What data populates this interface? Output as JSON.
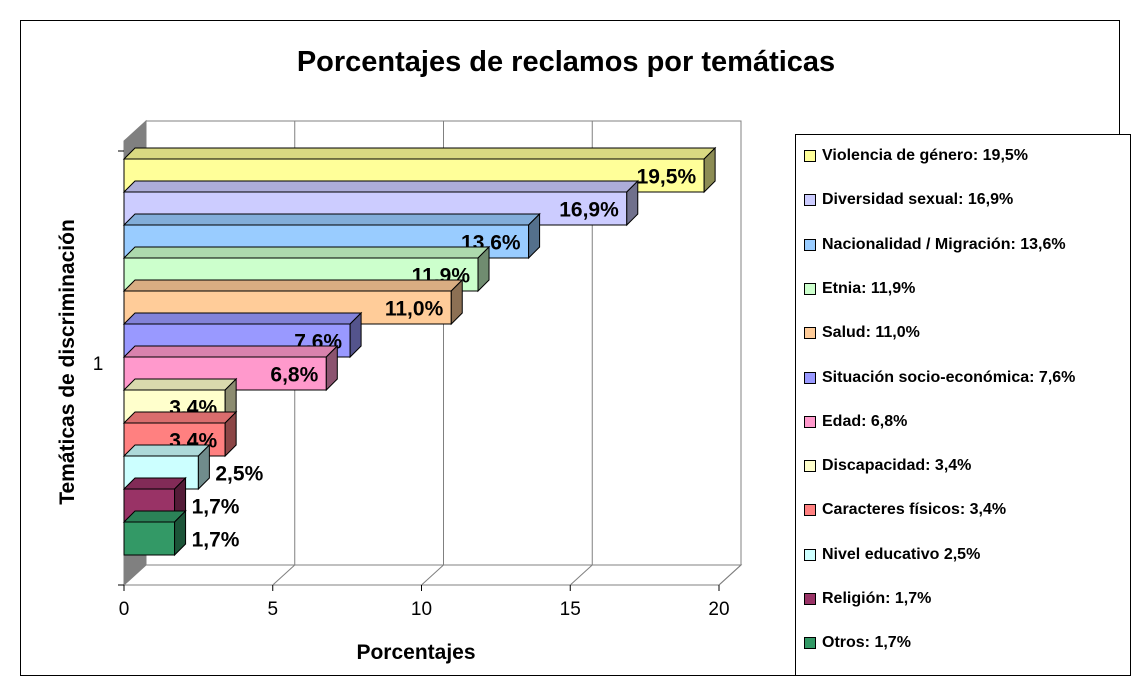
{
  "chart_data": {
    "type": "bar",
    "orientation": "horizontal",
    "style": "3d",
    "title": "Porcentajes de reclamos por temáticas",
    "xlabel": "Porcentajes",
    "ylabel": "Temáticas de discriminación",
    "category_label": "1",
    "xlim": [
      0,
      20
    ],
    "xticks": [
      "0",
      "5",
      "10",
      "15",
      "20"
    ],
    "grid": true,
    "legend_position": "right",
    "series": [
      {
        "name": "Violencia de género",
        "value": 19.5,
        "label": "19,5%",
        "legend": "Violencia de género: 19,5%",
        "color": "#ffff99"
      },
      {
        "name": "Diversidad sexual",
        "value": 16.9,
        "label": "16,9%",
        "legend": "Diversidad sexual: 16,9%",
        "color": "#ccccff"
      },
      {
        "name": "Nacionalidad / Migración",
        "value": 13.6,
        "label": "13,6%",
        "legend": "Nacionalidad / Migración: 13,6%",
        "color": "#99ccff"
      },
      {
        "name": "Etnia",
        "value": 11.9,
        "label": "11,9%",
        "legend": "Etnia: 11,9%",
        "color": "#ccffcc"
      },
      {
        "name": "Salud",
        "value": 11.0,
        "label": "11,0%",
        "legend": "Salud: 11,0%",
        "color": "#ffcc99"
      },
      {
        "name": "Situación socio-económica",
        "value": 7.6,
        "label": "7,6%",
        "legend": "Situación socio-económica: 7,6%",
        "color": "#9999ff"
      },
      {
        "name": "Edad",
        "value": 6.8,
        "label": "6,8%",
        "legend": "Edad: 6,8%",
        "color": "#ff99cc"
      },
      {
        "name": "Discapacidad",
        "value": 3.4,
        "label": "3,4%",
        "legend": "Discapacidad: 3,4%",
        "color": "#ffffcc"
      },
      {
        "name": "Caracteres físicos",
        "value": 3.4,
        "label": "3,4%",
        "legend": "Caracteres físicos: 3,4%",
        "color": "#ff8080"
      },
      {
        "name": "Nivel educativo",
        "value": 2.5,
        "label": "2,5%",
        "legend": "Nivel educativo 2,5%",
        "color": "#ccffff"
      },
      {
        "name": "Religión",
        "value": 1.7,
        "label": "1,7%",
        "legend": "Religión: 1,7%",
        "color": "#993366"
      },
      {
        "name": "Otros",
        "value": 1.7,
        "label": "1,7%",
        "legend": "Otros: 1,7%",
        "color": "#339966"
      }
    ]
  }
}
